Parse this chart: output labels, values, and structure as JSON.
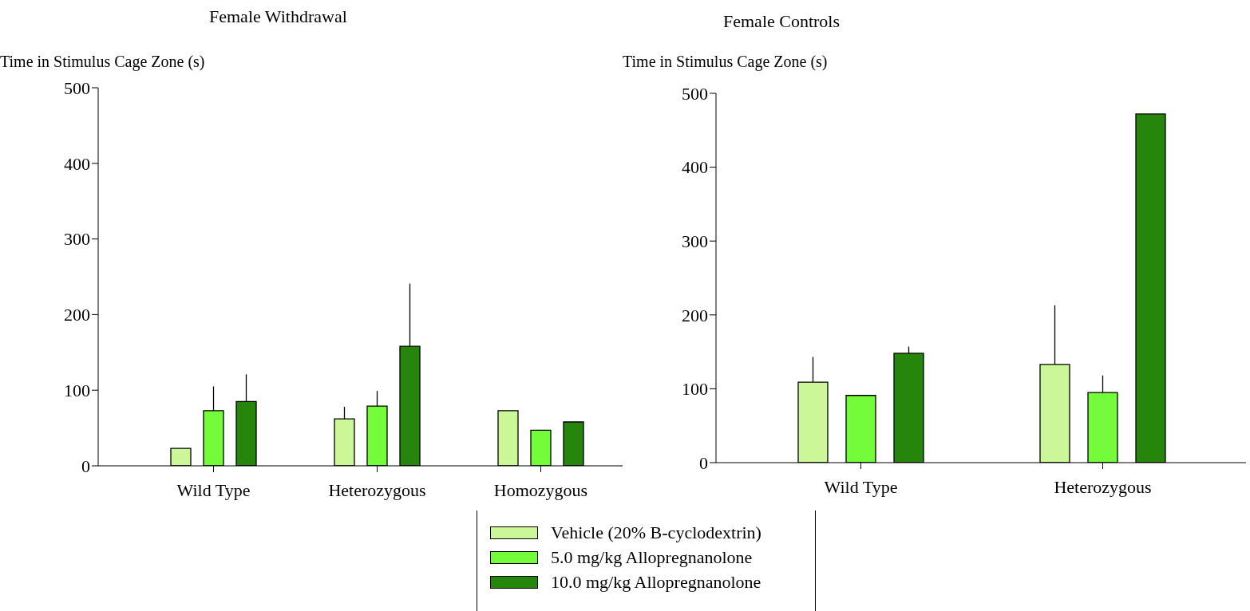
{
  "chart_data": [
    {
      "type": "bar",
      "title": "Female Withdrawal",
      "ylabel": "Time in Stimulus Cage Zone (s)",
      "categories": [
        "Wild Type",
        "Heterozygous",
        "Homozygous"
      ],
      "ylim": [
        0,
        500
      ],
      "yticks": [
        0,
        100,
        200,
        300,
        400,
        500
      ],
      "legend": "bottom",
      "series": [
        {
          "name": "Vehicle (20% B-cyclodextrin)",
          "color": "#ccf799",
          "values": [
            23,
            62,
            73
          ],
          "errors": [
            null,
            [
              62,
              78
            ],
            null
          ]
        },
        {
          "name": "5.0 mg/kg Allopregnanolone",
          "color": "#74fc3a",
          "values": [
            73,
            79,
            47
          ],
          "errors": [
            [
              73,
              105
            ],
            [
              79,
              99
            ],
            null
          ]
        },
        {
          "name": "10.0 mg/kg Allopregnanolone",
          "color": "#26860c",
          "values": [
            85,
            158,
            58
          ],
          "errors": [
            [
              85,
              121
            ],
            [
              158,
              241
            ],
            null
          ]
        }
      ]
    },
    {
      "type": "bar",
      "title": "Female Controls",
      "ylabel": "Time in Stimulus Cage Zone (s)",
      "categories": [
        "Wild Type",
        "Heterozygous"
      ],
      "ylim": [
        0,
        500
      ],
      "yticks": [
        0,
        100,
        200,
        300,
        400,
        500
      ],
      "series": [
        {
          "color": "#ccf799",
          "values": [
            109,
            133
          ],
          "errors": [
            [
              109,
              143
            ],
            [
              133,
              213
            ]
          ]
        },
        {
          "color": "#74fc3a",
          "values": [
            91,
            95
          ],
          "errors": [
            null,
            [
              95,
              118
            ]
          ]
        },
        {
          "color": "#26860c",
          "values": [
            148,
            472
          ],
          "errors": [
            [
              148,
              157
            ],
            null
          ]
        }
      ]
    }
  ]
}
